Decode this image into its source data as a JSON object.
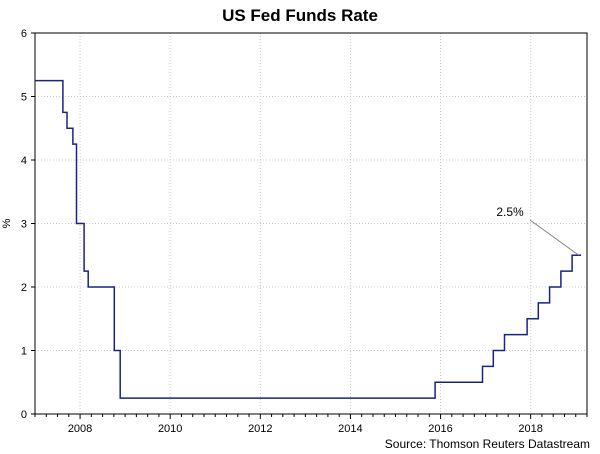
{
  "chart_data": {
    "type": "line",
    "title": "US Fed Funds Rate",
    "xlabel": "",
    "ylabel": "%",
    "xlim": [
      2007.0,
      2019.25
    ],
    "ylim": [
      0,
      6
    ],
    "x_ticks": [
      2008,
      2010,
      2012,
      2014,
      2016,
      2018
    ],
    "y_ticks": [
      0,
      1,
      2,
      3,
      4,
      5,
      6
    ],
    "grid": true,
    "step": true,
    "series": [
      {
        "name": "US Fed Funds Rate",
        "color": "#1a237e",
        "x": [
          2007.0,
          2007.62,
          2007.71,
          2007.84,
          2007.92,
          2008.0,
          2008.09,
          2008.18,
          2008.76,
          2008.89,
          2015.88,
          2016.93,
          2017.17,
          2017.42,
          2017.92,
          2018.17,
          2018.42,
          2018.67,
          2018.92,
          2019.12
        ],
        "y": [
          5.25,
          4.75,
          4.5,
          4.25,
          3.0,
          3.0,
          2.25,
          2.0,
          1.0,
          0.25,
          0.5,
          0.75,
          1.0,
          1.25,
          1.5,
          1.75,
          2.0,
          2.25,
          2.5,
          2.5
        ]
      }
    ],
    "annotations": [
      {
        "text": "2.5%",
        "x": 2019.0,
        "y": 2.5
      }
    ],
    "source": "Source: Thomson Reuters Datastream"
  }
}
